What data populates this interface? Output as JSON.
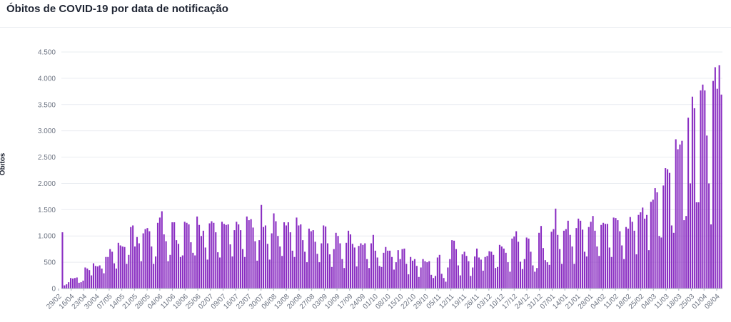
{
  "title": "Óbitos de COVID-19 por data de notificação",
  "colors": {
    "bar": "#8a2ec2",
    "grid": "#e9ecf1",
    "axis": "#a7afbd"
  },
  "chart_data": {
    "type": "bar",
    "title": "Óbitos de COVID-19 por data de notificação",
    "xlabel": "",
    "ylabel": "Óbitos",
    "ylim": [
      0,
      4500
    ],
    "yticks": [
      0,
      500,
      1000,
      1500,
      2000,
      2500,
      3000,
      3500,
      4000,
      4500
    ],
    "ytick_labels": [
      "0",
      "500",
      "1.000",
      "1.500",
      "2.000",
      "2.500",
      "3.000",
      "3.500",
      "4.000",
      "4.500"
    ],
    "x_tick_labels": [
      "29/02",
      "16/04",
      "23/04",
      "30/04",
      "07/05",
      "14/05",
      "21/05",
      "28/05",
      "04/06",
      "11/06",
      "18/06",
      "25/06",
      "02/07",
      "09/07",
      "16/07",
      "23/07",
      "30/07",
      "06/08",
      "13/08",
      "20/08",
      "27/08",
      "03/09",
      "10/09",
      "17/09",
      "24/09",
      "01/10",
      "08/10",
      "15/10",
      "22/10",
      "29/10",
      "05/11",
      "12/11",
      "19/11",
      "26/11",
      "03/12",
      "10/12",
      "17/12",
      "24/12",
      "31/12",
      "07/01",
      "14/01",
      "21/01",
      "28/01",
      "04/02",
      "11/02",
      "18/02",
      "25/02",
      "04/03",
      "11/03",
      "18/03",
      "25/03",
      "01/04",
      "08/04"
    ],
    "grid": true,
    "legend": "none",
    "series": [
      {
        "values": [
          1070,
          60,
          80,
          120,
          200,
          190,
          200,
          210,
          110,
          120,
          150,
          400,
          380,
          350,
          250,
          480,
          430,
          420,
          440,
          380,
          290,
          600,
          600,
          750,
          700,
          480,
          380,
          870,
          820,
          800,
          790,
          470,
          640,
          1170,
          1200,
          800,
          980,
          860,
          520,
          1050,
          1130,
          1150,
          1090,
          800,
          470,
          610,
          1250,
          1350,
          1470,
          1030,
          900,
          520,
          640,
          1260,
          1260,
          920,
          850,
          600,
          630,
          1270,
          1250,
          1220,
          880,
          680,
          630,
          1370,
          1210,
          1000,
          1100,
          780,
          550,
          1240,
          1280,
          1250,
          1070,
          690,
          590,
          1270,
          1230,
          1210,
          1220,
          840,
          610,
          1110,
          1270,
          1220,
          1110,
          750,
          600,
          1370,
          1300,
          1320,
          1160,
          900,
          530,
          920,
          1590,
          1170,
          1200,
          850,
          550,
          1050,
          1430,
          1280,
          1000,
          800,
          620,
          1260,
          1200,
          1260,
          1070,
          720,
          600,
          1350,
          1200,
          1220,
          920,
          700,
          500,
          1140,
          1090,
          1110,
          890,
          660,
          500,
          860,
          1200,
          1180,
          860,
          650,
          410,
          750,
          1060,
          1000,
          860,
          560,
          390,
          870,
          1100,
          1030,
          850,
          780,
          420,
          810,
          860,
          830,
          860,
          560,
          390,
          860,
          1020,
          720,
          590,
          430,
          410,
          680,
          790,
          720,
          720,
          600,
          360,
          500,
          730,
          560,
          750,
          760,
          470,
          270,
          600,
          530,
          560,
          430,
          220,
          400,
          560,
          520,
          500,
          520,
          260,
          200,
          240,
          590,
          640,
          280,
          200,
          130,
          400,
          560,
          920,
          910,
          750,
          440,
          250,
          650,
          700,
          620,
          520,
          240,
          400,
          610,
          760,
          590,
          550,
          340,
          600,
          620,
          710,
          700,
          640,
          390,
          410,
          830,
          800,
          760,
          680,
          500,
          320,
          950,
          990,
          1090,
          890,
          510,
          370,
          560,
          970,
          950,
          700,
          440,
          320,
          390,
          1060,
          1190,
          770,
          540,
          500,
          450,
          1080,
          1130,
          1520,
          1020,
          750,
          470,
          1100,
          1130,
          1290,
          1020,
          800,
          470,
          1150,
          1330,
          1290,
          1120,
          700,
          610,
          1170,
          1270,
          1380,
          1100,
          800,
          620,
          1210,
          1250,
          1230,
          1230,
          780,
          600,
          1350,
          1340,
          1300,
          1090,
          820,
          560,
          1170,
          1140,
          1360,
          1270,
          1100,
          650,
          1400,
          1450,
          1540,
          1330,
          1400,
          730,
          1650,
          1690,
          1910,
          1830,
          1000,
          970,
          1960,
          2290,
          2270,
          2200,
          1200,
          1060,
          2840,
          2650,
          2740,
          2810,
          1300,
          1380,
          3250,
          2000,
          3650,
          3430,
          1640,
          1640,
          3770,
          3880,
          3770,
          2910,
          2000,
          1220,
          3950,
          4210,
          3800,
          4250,
          3690
        ]
      }
    ]
  }
}
